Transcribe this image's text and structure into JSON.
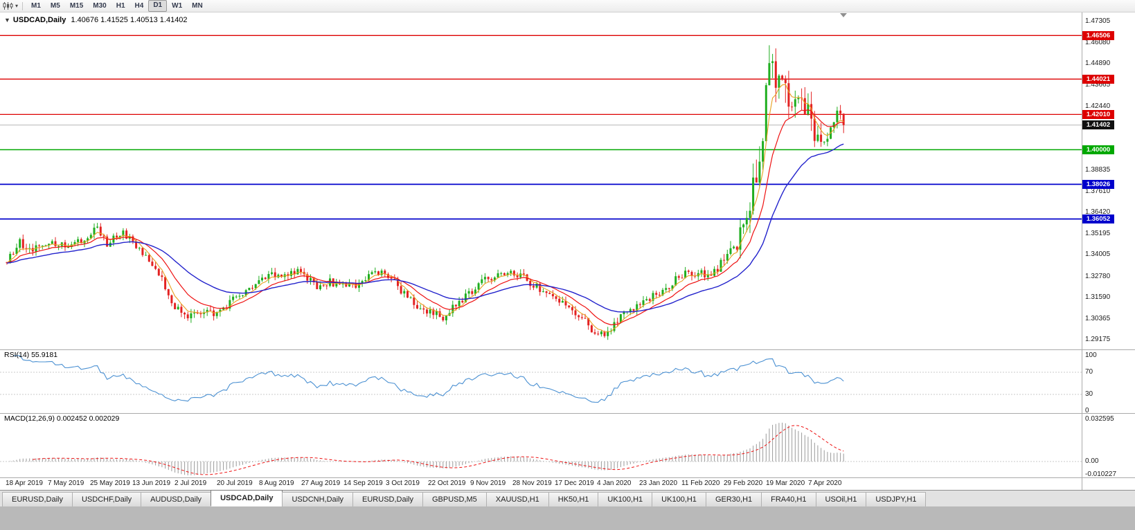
{
  "toolbar": {
    "timeframes": [
      "M1",
      "M5",
      "M15",
      "M30",
      "H1",
      "H4",
      "D1",
      "W1",
      "MN"
    ],
    "active_timeframe": "D1"
  },
  "chart": {
    "symbol": "USDCAD,Daily",
    "ohlc": "1.40676 1.41525 1.40513 1.41402",
    "dropdown_glyph": "▼"
  },
  "price_axis": {
    "labels": [
      "1.47305",
      "1.46080",
      "1.44890",
      "1.43665",
      "1.42440",
      "1.38835",
      "1.37610",
      "1.36420",
      "1.35195",
      "1.34005",
      "1.32780",
      "1.31590",
      "1.30365",
      "1.29175"
    ]
  },
  "levels": [
    {
      "label": "1.46506",
      "value": 1.46506,
      "color": "#dd0000",
      "line_width": 1.3,
      "kind": "resistance"
    },
    {
      "label": "1.44021",
      "value": 1.44021,
      "color": "#dd0000",
      "line_width": 1.3,
      "kind": "resistance"
    },
    {
      "label": "1.42010",
      "value": 1.4201,
      "color": "#dd0000",
      "line_width": 1.3,
      "kind": "resistance"
    },
    {
      "label": "1.40000",
      "value": 1.4,
      "color": "#00a800",
      "line_width": 1.5,
      "kind": "pivot"
    },
    {
      "label": "1.38026",
      "value": 1.38026,
      "color": "#0000cc",
      "line_width": 1.8,
      "kind": "support"
    },
    {
      "label": "1.36052",
      "value": 1.36052,
      "color": "#0000cc",
      "line_width": 1.8,
      "kind": "support"
    }
  ],
  "current_price": {
    "label": "1.41402",
    "value": 1.41402,
    "color": "#111111"
  },
  "rsi": {
    "label": "RSI(14) 55.9181",
    "axis_labels": [
      "100",
      "70",
      "30",
      "0"
    ],
    "axis_values": [
      100,
      70,
      30,
      0
    ]
  },
  "macd": {
    "label": "MACD(12,26,9) 0.002452 0.002029",
    "axis_labels": [
      "0.032595",
      "0.00",
      "-0.010227"
    ],
    "axis_values": [
      0.032595,
      0,
      -0.010227
    ]
  },
  "date_axis": {
    "labels": [
      "18 Apr 2019",
      "7 May 2019",
      "25 May 2019",
      "13 Jun 2019",
      "2 Jul 2019",
      "20 Jul 2019",
      "8 Aug 2019",
      "27 Aug 2019",
      "14 Sep 2019",
      "3 Oct 2019",
      "22 Oct 2019",
      "9 Nov 2019",
      "28 Nov 2019",
      "17 Dec 2019",
      "4 Jan 2020",
      "23 Jan 2020",
      "11 Feb 2020",
      "29 Feb 2020",
      "19 Mar 2020",
      "7 Apr 2020"
    ]
  },
  "tabs": {
    "items": [
      "EURUSD,Daily",
      "USDCHF,Daily",
      "AUDUSD,Daily",
      "USDCAD,Daily",
      "USDCNH,Daily",
      "EURUSD,Daily",
      "GBPUSD,M5",
      "XAUUSD,H1",
      "HK50,H1",
      "UK100,H1",
      "UK100,H1",
      "GER30,H1",
      "FRA40,H1",
      "USOil,H1",
      "USDJPY,H1"
    ],
    "active_index": 3
  },
  "chart_data": {
    "type": "candlestick",
    "symbol": "USDCAD",
    "timeframe": "Daily",
    "title": "USDCAD,Daily",
    "ohlc_display": {
      "open": 1.40676,
      "high": 1.41525,
      "low": 1.40513,
      "close": 1.41402
    },
    "last_close": 1.41402,
    "candle_count": 260,
    "y_axis_range": {
      "top": 1.47542,
      "bottom": 1.2893
    },
    "up_color": "#1fae1f",
    "down_color": "#e32222",
    "rsi_color": "#4a90d2",
    "macd_hist_color": "#9a9a9a",
    "macd_signal_color": "#ee1111",
    "moving_averages": [
      {
        "name": "fast-ma",
        "period": 5,
        "color": "#e8a020",
        "width": 1.1
      },
      {
        "name": "mid-ma",
        "period": 13,
        "color": "#ee1111",
        "width": 1.2
      },
      {
        "name": "slow-ma",
        "period": 34,
        "color": "#2222cc",
        "width": 1.4
      }
    ],
    "rsi_params": {
      "period": 14,
      "current": 55.9181,
      "levels": [
        70,
        30
      ],
      "range": [
        0,
        100
      ]
    },
    "macd_params": {
      "fast": 12,
      "slow": 26,
      "signal": 9,
      "current": 0.002452,
      "signal_current": 0.002029,
      "axis_max": 0.032595,
      "axis_min": -0.010227
    },
    "price_waypoints": [
      [
        0,
        1.336
      ],
      [
        4,
        1.347
      ],
      [
        8,
        1.343
      ],
      [
        13,
        1.348
      ],
      [
        18,
        1.344
      ],
      [
        24,
        1.35
      ],
      [
        28,
        1.3555
      ],
      [
        31,
        1.347
      ],
      [
        36,
        1.3525
      ],
      [
        42,
        1.34
      ],
      [
        48,
        1.327
      ],
      [
        52,
        1.3105
      ],
      [
        57,
        1.305
      ],
      [
        62,
        1.309
      ],
      [
        65,
        1.306
      ],
      [
        70,
        1.315
      ],
      [
        76,
        1.322
      ],
      [
        82,
        1.328
      ],
      [
        88,
        1.331
      ],
      [
        92,
        1.33
      ],
      [
        96,
        1.3195
      ],
      [
        100,
        1.325
      ],
      [
        104,
        1.322
      ],
      [
        108,
        1.3235
      ],
      [
        113,
        1.33
      ],
      [
        118,
        1.3285
      ],
      [
        124,
        1.316
      ],
      [
        130,
        1.3075
      ],
      [
        135,
        1.305
      ],
      [
        140,
        1.313
      ],
      [
        146,
        1.323
      ],
      [
        152,
        1.3295
      ],
      [
        157,
        1.33
      ],
      [
        163,
        1.3235
      ],
      [
        170,
        1.316
      ],
      [
        176,
        1.3075
      ],
      [
        182,
        1.2965
      ],
      [
        185,
        1.2957
      ],
      [
        190,
        1.304
      ],
      [
        196,
        1.313
      ],
      [
        202,
        1.318
      ],
      [
        206,
        1.324
      ],
      [
        209,
        1.329
      ],
      [
        214,
        1.33
      ],
      [
        218,
        1.327
      ],
      [
        222,
        1.338
      ],
      [
        226,
        1.345
      ],
      [
        229,
        1.364
      ],
      [
        232,
        1.39
      ],
      [
        234,
        1.412
      ],
      [
        236,
        1.453
      ],
      [
        238,
        1.442
      ],
      [
        240,
        1.447
      ],
      [
        243,
        1.428
      ],
      [
        246,
        1.432
      ],
      [
        249,
        1.415
      ],
      [
        252,
        1.4
      ],
      [
        255,
        1.412
      ],
      [
        257,
        1.42
      ],
      [
        259,
        1.41402
      ]
    ],
    "volatility_zones": [
      {
        "from": 0,
        "to": 221,
        "vol": 0.0048
      },
      {
        "from": 222,
        "to": 228,
        "vol": 0.01
      },
      {
        "from": 229,
        "to": 242,
        "vol": 0.021
      },
      {
        "from": 243,
        "to": 252,
        "vol": 0.013
      },
      {
        "from": 253,
        "to": 259,
        "vol": 0.0085
      }
    ]
  }
}
